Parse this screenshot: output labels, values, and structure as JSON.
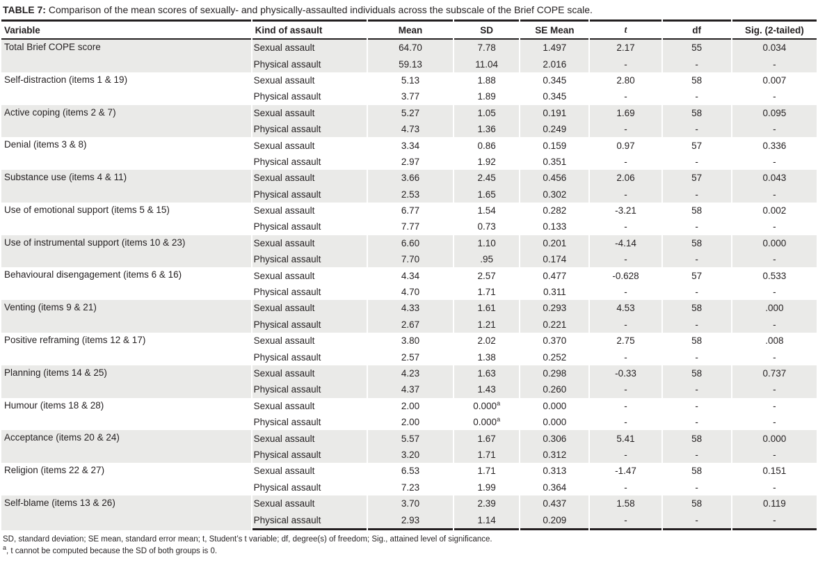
{
  "title": {
    "label": "TABLE 7:",
    "text": "Comparison of the mean scores of sexually- and physically-assaulted individuals across the subscale of the Brief COPE scale."
  },
  "table": {
    "columns": [
      "Variable",
      "Kind of assault",
      "Mean",
      "SD",
      "SE Mean",
      "t",
      "df",
      "Sig. (2-tailed)"
    ],
    "groups": [
      {
        "variable": "Total Brief COPE score",
        "rows": [
          {
            "kind": "Sexual assault",
            "mean": "64.70",
            "sd": "7.78",
            "se_mean": "1.497",
            "t": "2.17",
            "df": "55",
            "sig": "0.034"
          },
          {
            "kind": "Physical assault",
            "mean": "59.13",
            "sd": "11.04",
            "se_mean": "2.016",
            "t": "-",
            "df": "-",
            "sig": "-"
          }
        ]
      },
      {
        "variable": "Self-distraction (items 1 & 19)",
        "rows": [
          {
            "kind": "Sexual assault",
            "mean": "5.13",
            "sd": "1.88",
            "se_mean": "0.345",
            "t": "2.80",
            "df": "58",
            "sig": "0.007"
          },
          {
            "kind": "Physical assault",
            "mean": "3.77",
            "sd": "1.89",
            "se_mean": "0.345",
            "t": "-",
            "df": "-",
            "sig": "-"
          }
        ]
      },
      {
        "variable": "Active coping (items 2 & 7)",
        "rows": [
          {
            "kind": "Sexual assault",
            "mean": "5.27",
            "sd": "1.05",
            "se_mean": "0.191",
            "t": "1.69",
            "df": "58",
            "sig": "0.095"
          },
          {
            "kind": "Physical assault",
            "mean": "4.73",
            "sd": "1.36",
            "se_mean": "0.249",
            "t": "-",
            "df": "-",
            "sig": "-"
          }
        ]
      },
      {
        "variable": "Denial (items 3 & 8)",
        "rows": [
          {
            "kind": "Sexual assault",
            "mean": "3.34",
            "sd": "0.86",
            "se_mean": "0.159",
            "t": "0.97",
            "df": "57",
            "sig": "0.336"
          },
          {
            "kind": "Physical assault",
            "mean": "2.97",
            "sd": "1.92",
            "se_mean": "0.351",
            "t": "-",
            "df": "-",
            "sig": "-"
          }
        ]
      },
      {
        "variable": "Substance use (items 4 & 11)",
        "rows": [
          {
            "kind": "Sexual assault",
            "mean": "3.66",
            "sd": "2.45",
            "se_mean": "0.456",
            "t": "2.06",
            "df": "57",
            "sig": "0.043"
          },
          {
            "kind": "Physical assault",
            "mean": "2.53",
            "sd": "1.65",
            "se_mean": "0.302",
            "t": "-",
            "df": "-",
            "sig": "-"
          }
        ]
      },
      {
        "variable": "Use of emotional support (items 5 & 15)",
        "rows": [
          {
            "kind": "Sexual assault",
            "mean": "6.77",
            "sd": "1.54",
            "se_mean": "0.282",
            "t": "-3.21",
            "df": "58",
            "sig": "0.002"
          },
          {
            "kind": "Physical assault",
            "mean": "7.77",
            "sd": "0.73",
            "se_mean": "0.133",
            "t": "-",
            "df": "-",
            "sig": "-"
          }
        ]
      },
      {
        "variable": "Use of instrumental support (items 10 & 23)",
        "rows": [
          {
            "kind": "Sexual assault",
            "mean": "6.60",
            "sd": "1.10",
            "se_mean": "0.201",
            "t": "-4.14",
            "df": "58",
            "sig": "0.000"
          },
          {
            "kind": "Physical assault",
            "mean": "7.70",
            "sd": ".95",
            "se_mean": "0.174",
            "t": "-",
            "df": "-",
            "sig": "-"
          }
        ]
      },
      {
        "variable": "Behavioural disengagement (items 6 & 16)",
        "rows": [
          {
            "kind": "Sexual assault",
            "mean": "4.34",
            "sd": "2.57",
            "se_mean": "0.477",
            "t": "-0.628",
            "df": "57",
            "sig": "0.533"
          },
          {
            "kind": "Physical assault",
            "mean": "4.70",
            "sd": "1.71",
            "se_mean": "0.311",
            "t": "-",
            "df": "-",
            "sig": "-"
          }
        ]
      },
      {
        "variable": "Venting (items 9 & 21)",
        "rows": [
          {
            "kind": "Sexual assault",
            "mean": "4.33",
            "sd": "1.61",
            "se_mean": "0.293",
            "t": "4.53",
            "df": "58",
            "sig": ".000"
          },
          {
            "kind": "Physical assault",
            "mean": "2.67",
            "sd": "1.21",
            "se_mean": "0.221",
            "t": "-",
            "df": "-",
            "sig": "-"
          }
        ]
      },
      {
        "variable": "Positive reframing (items 12 & 17)",
        "rows": [
          {
            "kind": "Sexual assault",
            "mean": "3.80",
            "sd": "2.02",
            "se_mean": "0.370",
            "t": "2.75",
            "df": "58",
            "sig": ".008"
          },
          {
            "kind": "Physical assault",
            "mean": "2.57",
            "sd": "1.38",
            "se_mean": "0.252",
            "t": "-",
            "df": "-",
            "sig": "-"
          }
        ]
      },
      {
        "variable": "Planning (items 14 & 25)",
        "rows": [
          {
            "kind": "Sexual assault",
            "mean": "4.23",
            "sd": "1.63",
            "se_mean": "0.298",
            "t": "-0.33",
            "df": "58",
            "sig": "0.737"
          },
          {
            "kind": "Physical assault",
            "mean": "4.37",
            "sd": "1.43",
            "se_mean": "0.260",
            "t": "-",
            "df": "-",
            "sig": "-"
          }
        ]
      },
      {
        "variable": "Humour (items 18 & 28)",
        "rows": [
          {
            "kind": "Sexual assault",
            "mean": "2.00",
            "sd": "0.000",
            "sd_sup": "a",
            "se_mean": "0.000",
            "t": "-",
            "df": "-",
            "sig": "-"
          },
          {
            "kind": "Physical assault",
            "mean": "2.00",
            "sd": "0.000",
            "sd_sup": "a",
            "se_mean": "0.000",
            "t": "-",
            "df": "-",
            "sig": "-"
          }
        ]
      },
      {
        "variable": "Acceptance (items 20 & 24)",
        "rows": [
          {
            "kind": "Sexual assault",
            "mean": "5.57",
            "sd": "1.67",
            "se_mean": "0.306",
            "t": "5.41",
            "df": "58",
            "sig": "0.000"
          },
          {
            "kind": "Physical assault",
            "mean": "3.20",
            "sd": "1.71",
            "se_mean": "0.312",
            "t": "-",
            "df": "-",
            "sig": "-"
          }
        ]
      },
      {
        "variable": "Religion (items 22 & 27)",
        "rows": [
          {
            "kind": "Sexual assault",
            "mean": "6.53",
            "sd": "1.71",
            "se_mean": "0.313",
            "t": "-1.47",
            "df": "58",
            "sig": "0.151"
          },
          {
            "kind": "Physical assault",
            "mean": "7.23",
            "sd": "1.99",
            "se_mean": "0.364",
            "t": "-",
            "df": "-",
            "sig": "-"
          }
        ]
      },
      {
        "variable": "Self-blame (items 13 & 26)",
        "rows": [
          {
            "kind": "Sexual assault",
            "mean": "3.70",
            "sd": "2.39",
            "se_mean": "0.437",
            "t": "1.58",
            "df": "58",
            "sig": "0.119"
          },
          {
            "kind": "Physical assault",
            "mean": "2.93",
            "sd": "1.14",
            "se_mean": "0.209",
            "t": "-",
            "df": "-",
            "sig": "-"
          }
        ]
      }
    ]
  },
  "footnotes": {
    "abbreviations": "SD, standard deviation; SE mean, standard error mean; t, Student’s t variable; df, degree(s) of freedom; Sig., attained level of significance.",
    "note_a_marker": "a",
    "note_a_text": ", t cannot be computed because the SD of both groups is 0."
  },
  "style": {
    "row_shade_color": "#eaeae8",
    "rule_color": "#231f20",
    "text_color": "#231f20"
  }
}
